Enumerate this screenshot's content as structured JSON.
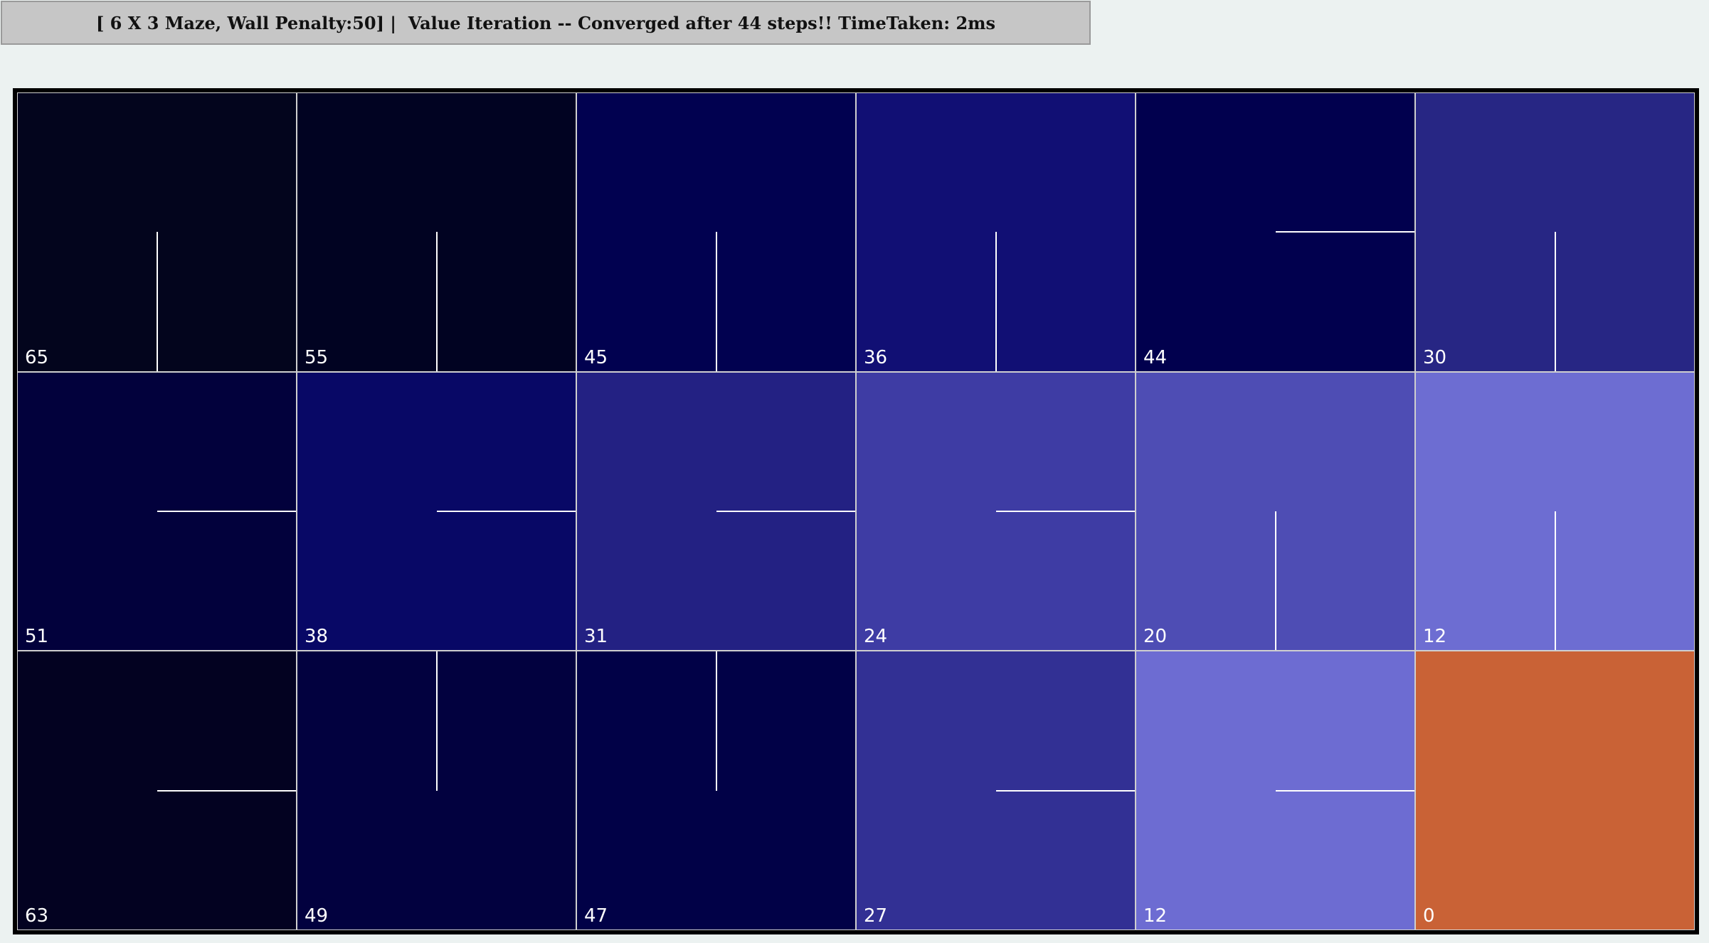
{
  "title": "[ 6 X 3 Maze, Wall Penalty:50] |  Value Iteration -- Converged after 44 steps!! TimeTaken: 2ms",
  "grid": {
    "columns": 6,
    "rows": 3,
    "cells": [
      {
        "value": "65",
        "arrow": "down",
        "color": "#03051d"
      },
      {
        "value": "55",
        "arrow": "down",
        "color": "#010322"
      },
      {
        "value": "45",
        "arrow": "down",
        "color": "#010150"
      },
      {
        "value": "36",
        "arrow": "down",
        "color": "#110f74"
      },
      {
        "value": "44",
        "arrow": "right",
        "color": "#01004e"
      },
      {
        "value": "30",
        "arrow": "down",
        "color": "#272684"
      },
      {
        "value": "51",
        "arrow": "right",
        "color": "#02013c"
      },
      {
        "value": "38",
        "arrow": "right",
        "color": "#080866"
      },
      {
        "value": "31",
        "arrow": "right",
        "color": "#232183"
      },
      {
        "value": "24",
        "arrow": "right",
        "color": "#3e3ca4"
      },
      {
        "value": "20",
        "arrow": "down",
        "color": "#4e4db4"
      },
      {
        "value": "12",
        "arrow": "down",
        "color": "#6d6dd2"
      },
      {
        "value": "63",
        "arrow": "right",
        "color": "#030221"
      },
      {
        "value": "49",
        "arrow": "up",
        "color": "#02013f"
      },
      {
        "value": "47",
        "arrow": "up",
        "color": "#010147"
      },
      {
        "value": "27",
        "arrow": "right",
        "color": "#323094"
      },
      {
        "value": "12",
        "arrow": "right",
        "color": "#6d6cd2"
      },
      {
        "value": "0",
        "arrow": "none",
        "color": "#c96236"
      }
    ]
  }
}
